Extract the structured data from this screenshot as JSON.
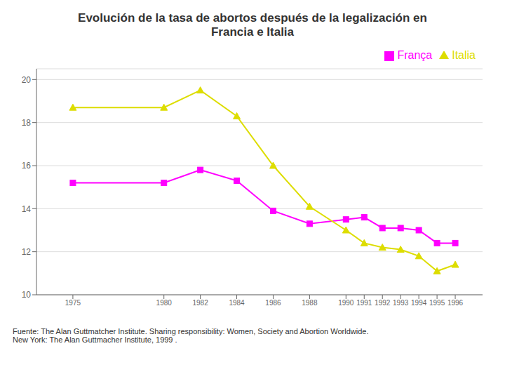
{
  "chart_data": {
    "type": "line",
    "title": "Evolución de la tasa de abortos después de la legalización en\nFrancia e Italia",
    "x": [
      1975,
      1980,
      1982,
      1984,
      1986,
      1988,
      1990,
      1991,
      1992,
      1993,
      1994,
      1995,
      1996
    ],
    "series": [
      {
        "name": "França",
        "color": "#ff00ff",
        "marker": "square",
        "values": [
          15.2,
          15.2,
          15.8,
          15.3,
          13.9,
          13.3,
          13.5,
          13.6,
          13.1,
          13.1,
          13.0,
          12.4,
          12.4
        ]
      },
      {
        "name": "Italia",
        "color": "#dddd00",
        "marker": "triangle",
        "values": [
          18.7,
          18.7,
          19.5,
          18.3,
          16.0,
          14.1,
          13.0,
          12.4,
          12.2,
          12.1,
          11.8,
          11.1,
          11.4
        ]
      }
    ],
    "xlim": [
      1973,
      1997.5
    ],
    "xticks": [
      1975,
      1980,
      1982,
      1984,
      1986,
      1988,
      1990,
      1991,
      1992,
      1993,
      1994,
      1995,
      1996
    ],
    "ylim": [
      10,
      20.5
    ],
    "yticks": [
      10,
      12,
      14,
      16,
      18,
      20
    ],
    "grid": true,
    "legend": "upper right",
    "annotations": [
      "Fuente: The Alan Guttmatcher Institute. Sharing responsibility: Women, Society and Abortion Worldwide.\nNew York: The Alan Guttmacher Institute, 1999 ."
    ]
  }
}
